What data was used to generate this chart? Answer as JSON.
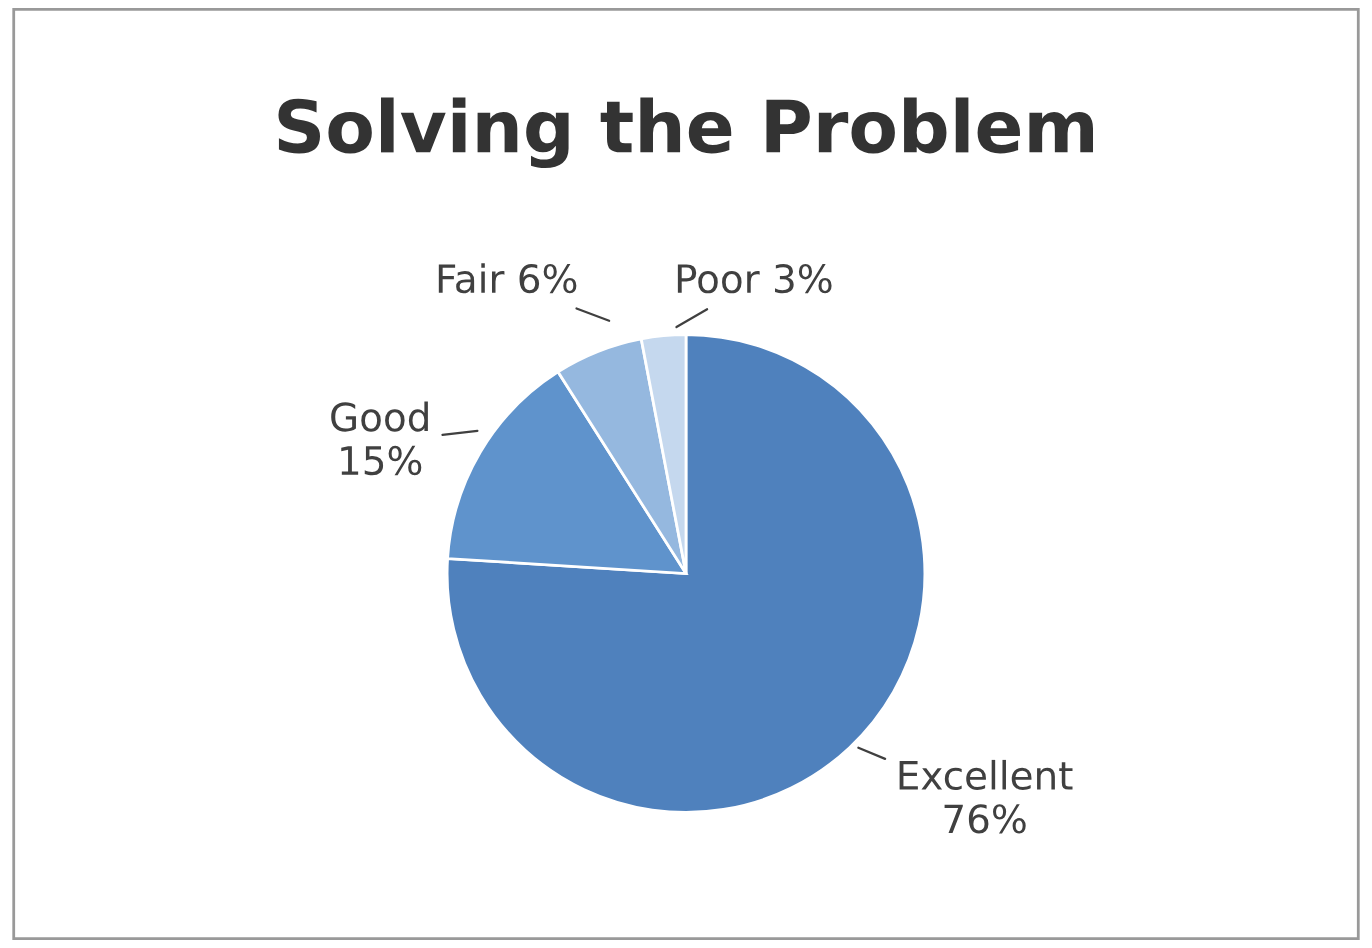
{
  "chart_data": {
    "type": "pie",
    "title": "Solving the Problem",
    "categories": [
      "Excellent",
      "Good",
      "Fair",
      "Poor"
    ],
    "values": [
      76,
      15,
      6,
      3
    ],
    "value_labels": [
      "76%",
      "15%",
      "6%",
      "3%"
    ],
    "colors": [
      "#4f81bd",
      "#5f93cc",
      "#95b8df",
      "#c5d8ee"
    ],
    "legend": false
  }
}
